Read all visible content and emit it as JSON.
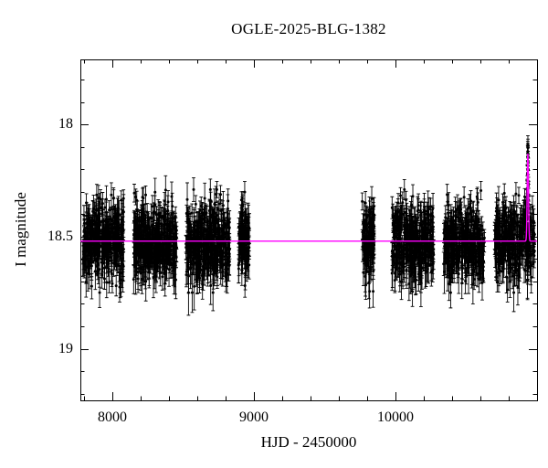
{
  "chart": {
    "title": "OGLE-2025-BLG-1382",
    "xlabel": "HJD - 2450000",
    "ylabel": "I magnitude",
    "x_tick_labels": [
      "8000",
      "9000",
      "10000"
    ],
    "y_tick_labels": [
      "18",
      "18.5",
      "19"
    ]
  },
  "chart_data": {
    "type": "scatter",
    "title": "OGLE-2025-BLG-1382",
    "xlabel": "HJD - 2450000",
    "ylabel": "I magnitude",
    "xlim": [
      7774,
      11000
    ],
    "ylim": [
      17.71,
      19.23
    ],
    "y_inverted": true,
    "grid": false,
    "x_major_ticks": [
      8000,
      9000,
      10000
    ],
    "x_minor_step": 200,
    "y_major_ticks": [
      18,
      18.5,
      19
    ],
    "y_minor_step": 0.1,
    "axis_color": "#000000",
    "point_color": "#000000",
    "point_radius": 1.5,
    "model": {
      "color": "#ff00ff",
      "baseline_mag": 18.52,
      "peak_t0": 10935,
      "peak_mag": 18.13,
      "sigma_days": 4.5
    },
    "seasons": [
      {
        "t_start": 7790,
        "t_end": 8080,
        "n": 380,
        "mag_mean": 18.52,
        "mag_sigma": 0.082
      },
      {
        "t_start": 8150,
        "t_end": 8455,
        "n": 400,
        "mag_mean": 18.52,
        "mag_sigma": 0.082
      },
      {
        "t_start": 8520,
        "t_end": 8830,
        "n": 380,
        "mag_mean": 18.52,
        "mag_sigma": 0.082
      },
      {
        "t_start": 8890,
        "t_end": 8970,
        "n": 110,
        "mag_mean": 18.52,
        "mag_sigma": 0.078
      },
      {
        "t_start": 9765,
        "t_end": 9850,
        "n": 130,
        "mag_mean": 18.52,
        "mag_sigma": 0.08
      },
      {
        "t_start": 9975,
        "t_end": 10270,
        "n": 360,
        "mag_mean": 18.52,
        "mag_sigma": 0.082
      },
      {
        "t_start": 10340,
        "t_end": 10630,
        "n": 360,
        "mag_mean": 18.52,
        "mag_sigma": 0.082
      },
      {
        "t_start": 10700,
        "t_end": 10982,
        "n": 330,
        "mag_mean": 18.52,
        "mag_sigma": 0.082
      }
    ],
    "event_points": {
      "n": 34,
      "t_center": 10935,
      "half_width_days": 9,
      "brightest_mag": 18.09,
      "mag_noise": 0.015
    },
    "err_mag_min": 0.035,
    "err_mag_max": 0.17
  }
}
